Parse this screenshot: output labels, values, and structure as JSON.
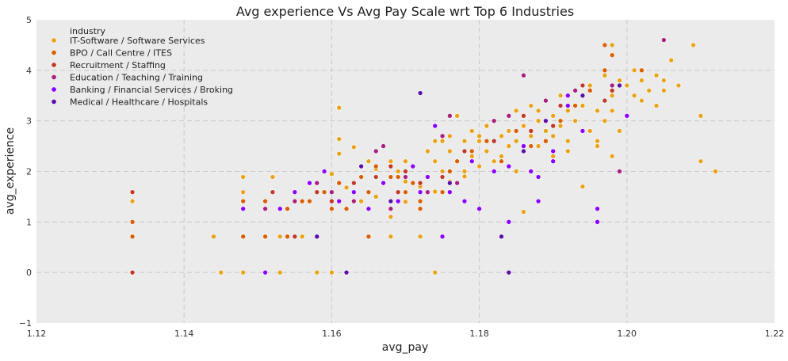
{
  "chart_data": {
    "type": "scatter",
    "title": "Avg experience Vs Avg Pay Scale wrt Top 6 Industries",
    "xlabel": "avg_pay",
    "ylabel": "avg_experience",
    "xlim": [
      1.12,
      1.22
    ],
    "ylim": [
      -1,
      5
    ],
    "x_ticks": [
      "1.12",
      "1.14",
      "1.16",
      "1.18",
      "1.20",
      "1.22"
    ],
    "y_ticks": [
      "−1",
      "0",
      "1",
      "2",
      "3",
      "4",
      "5"
    ],
    "grid": true,
    "legend": {
      "title": "industry",
      "placement": "top-left"
    },
    "series": [
      {
        "name": "IT-Software / Software Services",
        "color": "#E8A317",
        "points": [
          [
            1.133,
            1.41
          ],
          [
            1.144,
            0.71
          ],
          [
            1.145,
            0
          ],
          [
            1.148,
            1.89
          ],
          [
            1.148,
            1.59
          ],
          [
            1.148,
            0
          ],
          [
            1.152,
            1.89
          ],
          [
            1.153,
            0.71
          ],
          [
            1.153,
            0
          ],
          [
            1.156,
            1.41
          ],
          [
            1.156,
            0.71
          ],
          [
            1.158,
            0
          ],
          [
            1.159,
            1.59
          ],
          [
            1.16,
            1.95
          ],
          [
            1.16,
            0
          ],
          [
            1.161,
            3.26
          ],
          [
            1.161,
            2.64
          ],
          [
            1.161,
            2.35
          ],
          [
            1.161,
            1.77
          ],
          [
            1.162,
            1.68
          ],
          [
            1.163,
            2.48
          ],
          [
            1.164,
            2.1
          ],
          [
            1.164,
            1.41
          ],
          [
            1.165,
            2.2
          ],
          [
            1.166,
            2.05
          ],
          [
            1.167,
            2.5
          ],
          [
            1.168,
            2.2
          ],
          [
            1.168,
            1.1
          ],
          [
            1.169,
            2.0
          ],
          [
            1.17,
            1.8
          ],
          [
            1.17,
            1.4
          ],
          [
            1.171,
            2.1
          ],
          [
            1.172,
            1.7
          ],
          [
            1.172,
            0.71
          ],
          [
            1.173,
            2.4
          ],
          [
            1.174,
            2.2
          ],
          [
            1.174,
            1.6
          ],
          [
            1.175,
            2.6
          ],
          [
            1.175,
            2.0
          ],
          [
            1.176,
            2.4
          ],
          [
            1.176,
            1.8
          ],
          [
            1.177,
            3.1
          ],
          [
            1.177,
            2.2
          ],
          [
            1.178,
            2.6
          ],
          [
            1.178,
            2.0
          ],
          [
            1.179,
            2.8
          ],
          [
            1.179,
            2.3
          ],
          [
            1.18,
            2.6
          ],
          [
            1.18,
            2.1
          ],
          [
            1.181,
            2.9
          ],
          [
            1.181,
            2.4
          ],
          [
            1.182,
            3.0
          ],
          [
            1.182,
            2.2
          ],
          [
            1.183,
            2.7
          ],
          [
            1.183,
            2.3
          ],
          [
            1.184,
            3.1
          ],
          [
            1.184,
            2.5
          ],
          [
            1.185,
            3.2
          ],
          [
            1.185,
            2.6
          ],
          [
            1.185,
            2.0
          ],
          [
            1.186,
            2.9
          ],
          [
            1.186,
            2.4
          ],
          [
            1.186,
            1.2
          ],
          [
            1.187,
            3.3
          ],
          [
            1.187,
            2.7
          ],
          [
            1.188,
            3.0
          ],
          [
            1.188,
            2.5
          ],
          [
            1.189,
            3.4
          ],
          [
            1.189,
            2.8
          ],
          [
            1.19,
            3.1
          ],
          [
            1.19,
            2.7
          ],
          [
            1.19,
            2.3
          ],
          [
            1.191,
            3.5
          ],
          [
            1.191,
            2.9
          ],
          [
            1.192,
            3.2
          ],
          [
            1.192,
            2.6
          ],
          [
            1.193,
            3.6
          ],
          [
            1.193,
            3.0
          ],
          [
            1.194,
            3.3
          ],
          [
            1.194,
            1.7
          ],
          [
            1.195,
            3.7
          ],
          [
            1.195,
            2.8
          ],
          [
            1.196,
            3.2
          ],
          [
            1.196,
            2.5
          ],
          [
            1.197,
            3.9
          ],
          [
            1.197,
            3.0
          ],
          [
            1.198,
            4.5
          ],
          [
            1.198,
            3.5
          ],
          [
            1.198,
            2.3
          ],
          [
            1.199,
            3.8
          ],
          [
            1.199,
            2.8
          ],
          [
            1.2,
            3.7
          ],
          [
            1.2,
            3.1
          ],
          [
            1.201,
            4.0
          ],
          [
            1.202,
            3.8
          ],
          [
            1.202,
            3.4
          ],
          [
            1.203,
            3.6
          ],
          [
            1.204,
            3.9
          ],
          [
            1.204,
            3.3
          ],
          [
            1.205,
            3.8
          ],
          [
            1.206,
            4.2
          ],
          [
            1.207,
            3.7
          ],
          [
            1.209,
            4.5
          ],
          [
            1.21,
            3.1
          ],
          [
            1.21,
            2.2
          ],
          [
            1.212,
            2.0
          ],
          [
            1.174,
            0
          ],
          [
            1.176,
            2.7
          ],
          [
            1.178,
            1.9
          ],
          [
            1.18,
            2.7
          ],
          [
            1.182,
            2.0
          ],
          [
            1.184,
            2.8
          ],
          [
            1.188,
            3.2
          ],
          [
            1.192,
            2.4
          ],
          [
            1.196,
            2.6
          ],
          [
            1.198,
            3.2
          ],
          [
            1.201,
            3.5
          ],
          [
            1.205,
            3.6
          ],
          [
            1.17,
            2.2
          ],
          [
            1.166,
            1.5
          ],
          [
            1.168,
            0.71
          ],
          [
            1.174,
            2.6
          ]
        ]
      },
      {
        "name": "BPO / Call Centre / ITES",
        "color": "#D95F02",
        "points": [
          [
            1.133,
            1.0
          ],
          [
            1.133,
            0.71
          ],
          [
            1.148,
            1.41
          ],
          [
            1.148,
            0.71
          ],
          [
            1.151,
            1.41
          ],
          [
            1.151,
            0.71
          ],
          [
            1.154,
            1.26
          ],
          [
            1.154,
            0.71
          ],
          [
            1.157,
            1.41
          ],
          [
            1.159,
            1.59
          ],
          [
            1.161,
            1.77
          ],
          [
            1.162,
            1.26
          ],
          [
            1.163,
            1.41
          ],
          [
            1.165,
            1.59
          ],
          [
            1.165,
            0.71
          ],
          [
            1.167,
            1.77
          ],
          [
            1.168,
            1.41
          ],
          [
            1.169,
            1.89
          ],
          [
            1.17,
            1.59
          ],
          [
            1.171,
            1.77
          ],
          [
            1.172,
            1.26
          ],
          [
            1.173,
            1.89
          ],
          [
            1.175,
            1.59
          ],
          [
            1.177,
            2.2
          ],
          [
            1.179,
            2.4
          ],
          [
            1.181,
            2.6
          ],
          [
            1.183,
            2.2
          ],
          [
            1.185,
            2.8
          ],
          [
            1.187,
            2.5
          ],
          [
            1.189,
            2.6
          ],
          [
            1.191,
            3.0
          ],
          [
            1.193,
            3.3
          ],
          [
            1.195,
            3.6
          ],
          [
            1.197,
            4.0
          ],
          [
            1.198,
            4.3
          ],
          [
            1.202,
            4.0
          ],
          [
            1.197,
            4.5
          ],
          [
            1.156,
            1.41
          ],
          [
            1.16,
            1.26
          ],
          [
            1.164,
            1.89
          ],
          [
            1.166,
            2.1
          ],
          [
            1.168,
            1.89
          ],
          [
            1.172,
            1.41
          ],
          [
            1.176,
            2.0
          ]
        ]
      },
      {
        "name": "Recruitment / Staffing",
        "color": "#C0392B",
        "points": [
          [
            1.133,
            1.59
          ],
          [
            1.133,
            0
          ],
          [
            1.152,
            1.59
          ],
          [
            1.155,
            0.71
          ],
          [
            1.158,
            1.59
          ],
          [
            1.16,
            1.41
          ],
          [
            1.163,
            1.77
          ],
          [
            1.166,
            1.89
          ],
          [
            1.169,
            1.59
          ],
          [
            1.172,
            1.77
          ],
          [
            1.175,
            1.89
          ],
          [
            1.178,
            2.4
          ],
          [
            1.182,
            2.6
          ],
          [
            1.186,
            3.1
          ],
          [
            1.19,
            2.9
          ],
          [
            1.194,
            3.7
          ],
          [
            1.198,
            3.6
          ],
          [
            1.162,
            0
          ],
          [
            1.17,
            2.0
          ],
          [
            1.168,
            2.1
          ],
          [
            1.187,
            2.8
          ],
          [
            1.191,
            3.3
          ],
          [
            1.197,
            3.4
          ]
        ]
      },
      {
        "name": "Education / Teaching / Training",
        "color": "#A6217E",
        "points": [
          [
            1.151,
            1.26
          ],
          [
            1.155,
            1.41
          ],
          [
            1.158,
            1.77
          ],
          [
            1.16,
            1.59
          ],
          [
            1.163,
            1.41
          ],
          [
            1.166,
            2.4
          ],
          [
            1.168,
            1.26
          ],
          [
            1.17,
            1.89
          ],
          [
            1.173,
            1.59
          ],
          [
            1.176,
            3.1
          ],
          [
            1.177,
            1.77
          ],
          [
            1.182,
            3.0
          ],
          [
            1.184,
            3.1
          ],
          [
            1.186,
            3.9
          ],
          [
            1.189,
            3.4
          ],
          [
            1.193,
            3.6
          ],
          [
            1.198,
            3.7
          ],
          [
            1.199,
            2.0
          ],
          [
            1.205,
            4.6
          ],
          [
            1.167,
            2.5
          ],
          [
            1.175,
            2.7
          ]
        ]
      },
      {
        "name": "Banking / Financial Services / Broking",
        "color": "#8B00FF",
        "points": [
          [
            1.148,
            1.26
          ],
          [
            1.151,
            0
          ],
          [
            1.153,
            1.26
          ],
          [
            1.155,
            1.59
          ],
          [
            1.157,
            1.77
          ],
          [
            1.159,
            2.0
          ],
          [
            1.161,
            1.41
          ],
          [
            1.163,
            1.59
          ],
          [
            1.165,
            1.26
          ],
          [
            1.167,
            1.77
          ],
          [
            1.169,
            1.41
          ],
          [
            1.171,
            2.1
          ],
          [
            1.173,
            1.89
          ],
          [
            1.174,
            2.9
          ],
          [
            1.175,
            0.71
          ],
          [
            1.176,
            1.59
          ],
          [
            1.178,
            1.41
          ],
          [
            1.18,
            1.26
          ],
          [
            1.182,
            2.0
          ],
          [
            1.184,
            2.1
          ],
          [
            1.186,
            2.5
          ],
          [
            1.187,
            2.0
          ],
          [
            1.188,
            1.89
          ],
          [
            1.19,
            2.2
          ],
          [
            1.192,
            3.3
          ],
          [
            1.194,
            2.8
          ],
          [
            1.196,
            1.26
          ],
          [
            1.196,
            1.0
          ],
          [
            1.2,
            3.1
          ],
          [
            1.184,
            1.0
          ],
          [
            1.19,
            2.4
          ],
          [
            1.192,
            3.5
          ],
          [
            1.172,
            1.59
          ],
          [
            1.179,
            2.2
          ],
          [
            1.188,
            1.41
          ]
        ]
      },
      {
        "name": "Medical / Healthcare / Hospitals",
        "color": "#5B0FA8",
        "points": [
          [
            1.158,
            0.71
          ],
          [
            1.162,
            0
          ],
          [
            1.164,
            2.1
          ],
          [
            1.172,
            3.55
          ],
          [
            1.183,
            0.71
          ],
          [
            1.184,
            0
          ],
          [
            1.189,
            3.0
          ],
          [
            1.194,
            3.5
          ],
          [
            1.199,
            3.7
          ],
          [
            1.176,
            1.77
          ],
          [
            1.168,
            1.41
          ],
          [
            1.186,
            2.4
          ]
        ]
      }
    ]
  }
}
